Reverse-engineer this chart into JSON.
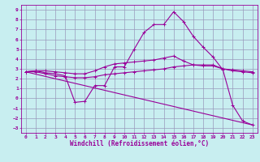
{
  "background_color": "#c8eef0",
  "grid_color": "#9999bb",
  "line_color": "#990099",
  "xlabel": "Windchill (Refroidissement éolien,°C)",
  "xlim": [
    -0.5,
    23.5
  ],
  "ylim": [
    -3.5,
    9.5
  ],
  "xticks": [
    0,
    1,
    2,
    3,
    4,
    5,
    6,
    7,
    8,
    9,
    10,
    11,
    12,
    13,
    14,
    15,
    16,
    17,
    18,
    19,
    20,
    21,
    22,
    23
  ],
  "yticks": [
    -3,
    -2,
    -1,
    0,
    1,
    2,
    3,
    4,
    5,
    6,
    7,
    8,
    9
  ],
  "line1": {
    "x": [
      0,
      1,
      2,
      3,
      4,
      5,
      6,
      7,
      8,
      9,
      10,
      11,
      12,
      13,
      14,
      15,
      16,
      17,
      18,
      19,
      20,
      21,
      22,
      23
    ],
    "y": [
      2.7,
      2.8,
      2.8,
      2.7,
      2.6,
      2.5,
      2.5,
      2.8,
      3.2,
      3.5,
      3.6,
      3.7,
      3.8,
      3.9,
      4.1,
      4.3,
      3.8,
      3.4,
      3.3,
      3.3,
      3.0,
      2.9,
      2.8,
      2.7
    ]
  },
  "line2": {
    "x": [
      0,
      1,
      2,
      3,
      4,
      5,
      6,
      7,
      8,
      9,
      10,
      11,
      12,
      13,
      14,
      15,
      16,
      17,
      18,
      19,
      20,
      21,
      22,
      23
    ],
    "y": [
      2.7,
      2.8,
      2.6,
      2.5,
      2.3,
      -0.4,
      -0.3,
      1.3,
      1.3,
      3.2,
      3.2,
      5.0,
      6.7,
      7.5,
      7.5,
      8.8,
      7.8,
      6.3,
      5.2,
      4.2,
      2.9,
      -0.7,
      -2.3,
      -2.7
    ]
  },
  "line3": {
    "x": [
      0,
      1,
      2,
      3,
      4,
      5,
      6,
      7,
      8,
      9,
      10,
      11,
      12,
      13,
      14,
      15,
      16,
      17,
      18,
      19,
      20,
      21,
      22,
      23
    ],
    "y": [
      2.7,
      2.7,
      2.5,
      2.3,
      2.2,
      2.1,
      2.1,
      2.2,
      2.4,
      2.5,
      2.6,
      2.7,
      2.8,
      2.9,
      3.0,
      3.2,
      3.3,
      3.4,
      3.4,
      3.4,
      3.0,
      2.8,
      2.7,
      2.6
    ]
  },
  "line4": {
    "x": [
      0,
      23
    ],
    "y": [
      2.7,
      -2.7
    ]
  },
  "xlabel_fontsize": 5.5,
  "tick_fontsize": 4.5
}
